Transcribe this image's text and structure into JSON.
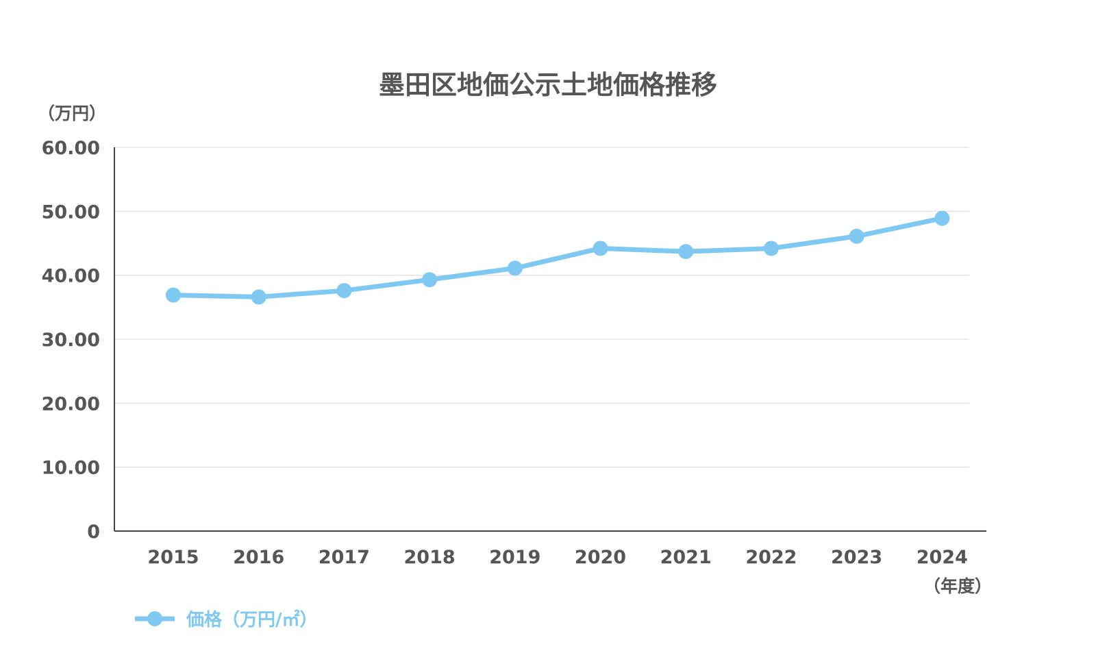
{
  "chart_data": {
    "type": "line",
    "title": "墨田区地価公示土地価格推移",
    "ylabel": "（万円）",
    "xlabel": "（年度）",
    "categories": [
      "2015",
      "2016",
      "2017",
      "2018",
      "2019",
      "2020",
      "2021",
      "2022",
      "2023",
      "2024"
    ],
    "series": [
      {
        "name": "価格（万円/㎡）",
        "values": [
          36.9,
          36.6,
          37.6,
          39.3,
          41.1,
          44.2,
          43.7,
          44.2,
          46.1,
          48.9
        ]
      }
    ],
    "ylim": [
      0,
      60
    ],
    "yticks": [
      {
        "value": 0,
        "label": "0"
      },
      {
        "value": 10,
        "label": "10.00"
      },
      {
        "value": 20,
        "label": "20.00"
      },
      {
        "value": 30,
        "label": "30.00"
      },
      {
        "value": 40,
        "label": "40.00"
      },
      {
        "value": 50,
        "label": "50.00"
      },
      {
        "value": 60,
        "label": "60.00"
      }
    ],
    "grid": true,
    "legend_position": "bottom-left",
    "colors": {
      "series": "#7ec8f2",
      "text": "#555555",
      "grid": "#e3e3e3",
      "axis": "#444444"
    }
  }
}
